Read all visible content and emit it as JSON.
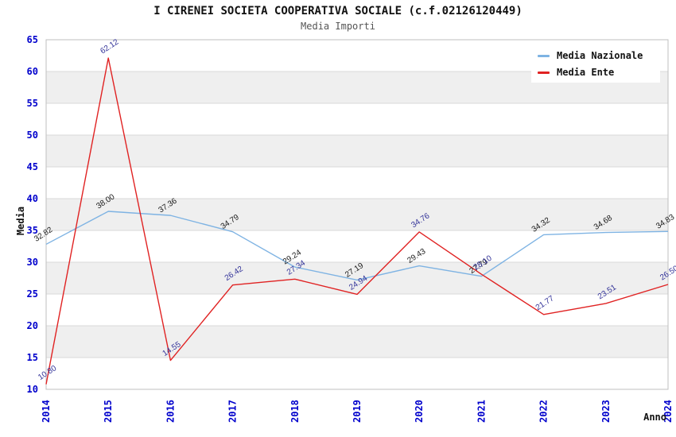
{
  "title": "I CIRENEI SOCIETA COOPERATIVA SOCIALE (c.f.02126120449)",
  "subtitle": "Media Importi",
  "axis": {
    "y_title": "Media",
    "x_title": "Anno"
  },
  "legend": [
    {
      "label": "Media Nazionale",
      "color": "#7EB3E3"
    },
    {
      "label": "Media Ente",
      "color": "#E02222"
    }
  ],
  "colors": {
    "band": "#EFEFEF",
    "grid": "#D9D9D9",
    "border": "#BFBFBF",
    "tick_text": "#0000CC"
  },
  "chart_data": {
    "type": "line",
    "title": "I CIRENEI SOCIETA COOPERATIVA SOCIALE (c.f.02126120449)",
    "subtitle": "Media Importi",
    "xlabel": "Anno",
    "ylabel": "Media",
    "categories": [
      "2014",
      "2015",
      "2016",
      "2017",
      "2018",
      "2019",
      "2020",
      "2021",
      "2022",
      "2023",
      "2024"
    ],
    "series": [
      {
        "name": "Media Nazionale",
        "color": "#7EB3E3",
        "label_color": "#1A1A1A",
        "label_dx": -2,
        "label_dy": -10,
        "values": [
          32.82,
          38.0,
          37.36,
          34.79,
          29.24,
          27.19,
          29.43,
          27.79,
          34.32,
          34.68,
          34.83
        ]
      },
      {
        "name": "Media Ente",
        "color": "#E02222",
        "label_color": "#333399",
        "label_dx": 3,
        "label_dy": -12,
        "values": [
          10.8,
          62.12,
          14.55,
          26.42,
          27.34,
          24.94,
          34.76,
          28.1,
          21.77,
          23.51,
          26.5
        ]
      }
    ],
    "ylim": [
      10,
      65
    ],
    "yticks": [
      10,
      15,
      20,
      25,
      30,
      35,
      40,
      45,
      50,
      55,
      60,
      65
    ],
    "grid": true,
    "band_fill_alternate": true,
    "legend_position": "top-right"
  }
}
